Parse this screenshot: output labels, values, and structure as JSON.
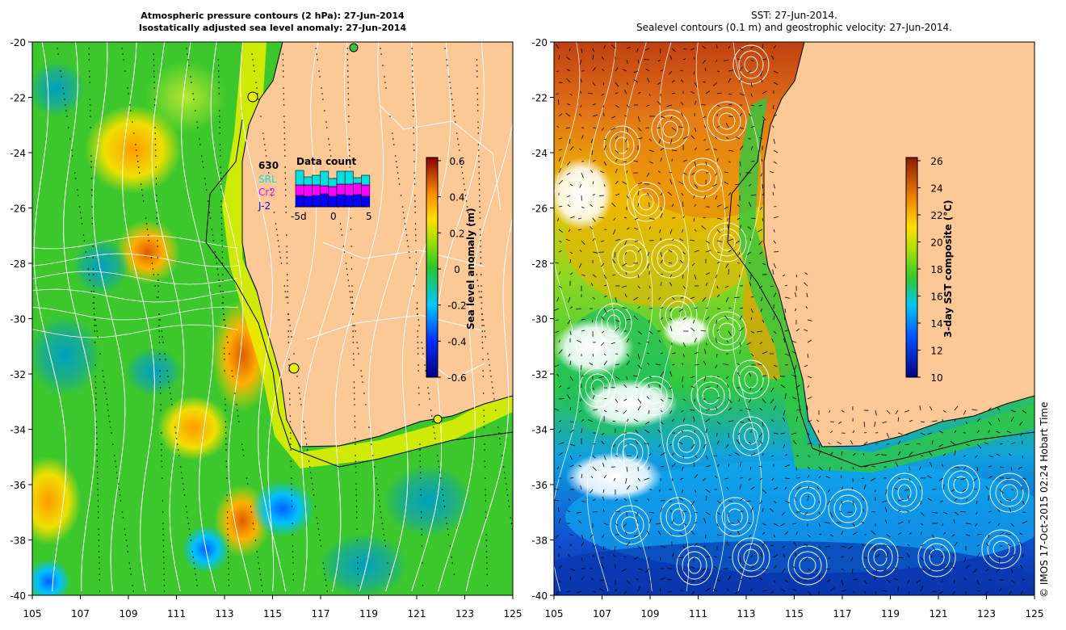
{
  "left_panel": {
    "title_line1": "Atmospheric pressure contours (2 hPa): 27-Jun-2014",
    "title_line2": "Isostatically adjusted sea level anomaly: 27-Jun-2014",
    "colorbar_label": "Sea level anomaly (m)",
    "colorbar_ticks": [
      "0.6",
      "0.4",
      "0.2",
      "0",
      "-0.2",
      "-0.4",
      "-0.6"
    ],
    "inset": {
      "title": "Data count",
      "count": "630",
      "missions": [
        {
          "label": "SRL",
          "color": "#00e0e0"
        },
        {
          "label": "Cr2",
          "color": "#ff00ff"
        },
        {
          "label": "J-2",
          "color": "#0000ff"
        }
      ],
      "x_ticks": [
        "-5d",
        "0",
        "5"
      ]
    }
  },
  "right_panel": {
    "title_line1": "SST: 27-Jun-2014.",
    "title_line2": "Sealevel contours (0.1 m) and geostrophic velocity: 27-Jun-2014.",
    "colorbar_label": "3-day SST composite (°C)",
    "colorbar_ticks": [
      "26",
      "24",
      "22",
      "20",
      "18",
      "16",
      "14",
      "12",
      "10"
    ]
  },
  "axes": {
    "lat_ticks": [
      "-20",
      "-22",
      "-24",
      "-26",
      "-28",
      "-30",
      "-32",
      "-34",
      "-36",
      "-38",
      "-40"
    ],
    "lon_ticks": [
      "105",
      "107",
      "109",
      "111",
      "113",
      "115",
      "117",
      "119",
      "121",
      "123",
      "125"
    ]
  },
  "credit": "© IMOS 17-Oct-2015 02:24 Hobart Time",
  "colors": {
    "land": "#fbc896",
    "ocean_green": "#3cc82c",
    "coast": "#000000"
  }
}
